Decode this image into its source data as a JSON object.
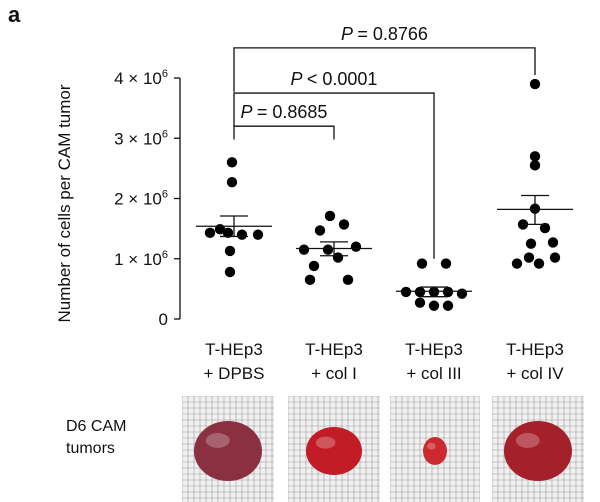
{
  "panel_letter": "a",
  "chart_data": {
    "type": "scatter",
    "ylabel": "Number of cells per CAM tumor",
    "ylim": [
      0,
      4000000
    ],
    "yticks": [
      {
        "value": 0,
        "base": "0",
        "exp": ""
      },
      {
        "value": 1000000,
        "base": "1 × 10",
        "exp": "6"
      },
      {
        "value": 2000000,
        "base": "2 × 10",
        "exp": "6"
      },
      {
        "value": 3000000,
        "base": "3 × 10",
        "exp": "6"
      },
      {
        "value": 4000000,
        "base": "4 × 10",
        "exp": "6"
      }
    ],
    "categories": [
      {
        "line1": "T-HEp3",
        "line2": "+ DPBS"
      },
      {
        "line1": "T-HEp3",
        "line2": "+ col I"
      },
      {
        "line1": "T-HEp3",
        "line2": "+ col III"
      },
      {
        "line1": "T-HEp3",
        "line2": "+ col IV"
      }
    ],
    "groups": [
      {
        "points": [
          {
            "y": 2600000,
            "off": -2
          },
          {
            "y": 2270000,
            "off": -2
          },
          {
            "y": 1430000,
            "off": -24
          },
          {
            "y": 1490000,
            "off": -14
          },
          {
            "y": 1430000,
            "off": -6
          },
          {
            "y": 1400000,
            "off": 8
          },
          {
            "y": 1400000,
            "off": 24
          },
          {
            "y": 1130000,
            "off": -4
          },
          {
            "y": 780000,
            "off": -4
          }
        ],
        "mean": 1540000,
        "sem_low": 1370000,
        "sem_high": 1710000
      },
      {
        "points": [
          {
            "y": 1710000,
            "off": -4
          },
          {
            "y": 1570000,
            "off": 10
          },
          {
            "y": 1470000,
            "off": -14
          },
          {
            "y": 1200000,
            "off": 22
          },
          {
            "y": 1150000,
            "off": -30
          },
          {
            "y": 1150000,
            "off": -6
          },
          {
            "y": 1020000,
            "off": 4
          },
          {
            "y": 880000,
            "off": -20
          },
          {
            "y": 650000,
            "off": -24
          },
          {
            "y": 650000,
            "off": 14
          }
        ],
        "mean": 1170000,
        "sem_low": 1050000,
        "sem_high": 1280000
      },
      {
        "points": [
          {
            "y": 920000,
            "off": -12
          },
          {
            "y": 920000,
            "off": 12
          },
          {
            "y": 450000,
            "off": -28
          },
          {
            "y": 450000,
            "off": -14
          },
          {
            "y": 450000,
            "off": 0
          },
          {
            "y": 450000,
            "off": 14
          },
          {
            "y": 420000,
            "off": 28
          },
          {
            "y": 270000,
            "off": -14
          },
          {
            "y": 220000,
            "off": 0
          },
          {
            "y": 220000,
            "off": 14
          }
        ],
        "mean": 460000,
        "sem_low": 370000,
        "sem_high": 530000
      },
      {
        "points": [
          {
            "y": 3900000,
            "off": 0
          },
          {
            "y": 2700000,
            "off": 0
          },
          {
            "y": 2550000,
            "off": 0
          },
          {
            "y": 1830000,
            "off": 0
          },
          {
            "y": 1570000,
            "off": -12
          },
          {
            "y": 1510000,
            "off": 10
          },
          {
            "y": 1270000,
            "off": 18
          },
          {
            "y": 1250000,
            "off": -4
          },
          {
            "y": 1020000,
            "off": -6
          },
          {
            "y": 1020000,
            "off": 20
          },
          {
            "y": 920000,
            "off": -18
          },
          {
            "y": 920000,
            "off": 4
          }
        ],
        "mean": 1820000,
        "sem_low": 1570000,
        "sem_high": 2050000
      }
    ],
    "comparisons": [
      {
        "from": 0,
        "to": 1,
        "y": 3200000,
        "label": "0.8685"
      },
      {
        "from": 0,
        "to": 2,
        "y": 3750000,
        "label": "< 0.0001"
      },
      {
        "from": 0,
        "to": 3,
        "y": 4500000,
        "label": "= 0.8766"
      }
    ],
    "p_symbol": "P",
    "equals": "= "
  },
  "photo_panel": {
    "label_line1": "D6 CAM",
    "label_line2": "tumors",
    "photos": [
      {
        "name": "dpbs-tumor-photo",
        "size": "large",
        "color": "#8a3040"
      },
      {
        "name": "col-i-tumor-photo",
        "size": "medium",
        "color": "#c21c26"
      },
      {
        "name": "col-iii-tumor-photo",
        "size": "small",
        "color": "#cc2a2e"
      },
      {
        "name": "col-iv-tumor-photo",
        "size": "large",
        "color": "#a4202a"
      }
    ]
  }
}
